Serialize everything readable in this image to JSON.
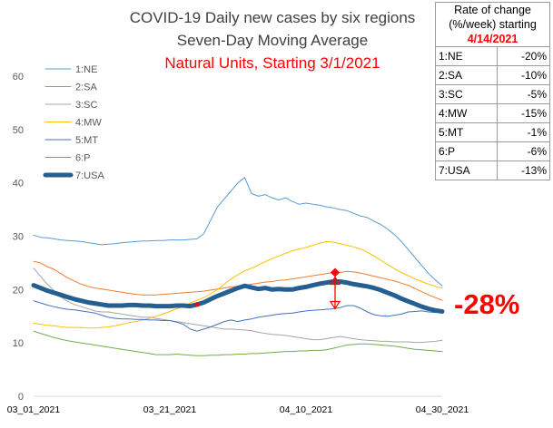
{
  "chart_data": {
    "type": "line",
    "title": "COVID-19 Daily new cases by six regions",
    "subtitle": "Seven-Day Moving Average",
    "subtitle2": "Natural Units, Starting 3/1/2021",
    "ylim": [
      0,
      60
    ],
    "yticks": [
      "0",
      "10",
      "20",
      "30",
      "40",
      "50",
      "60"
    ],
    "xticks": [
      "03_01_2021",
      "03_21_2021",
      "04_10_2021",
      "04_30_2021"
    ],
    "x_start_label": "03_01_2021",
    "n_days": 61,
    "annotation": "-28%",
    "grid": false,
    "legend_position": "top-left",
    "series": [
      {
        "name": "1:NE",
        "color": "#5b9bd5",
        "width": 1,
        "values": [
          30.2,
          29.8,
          29.7,
          29.5,
          29.3,
          29.2,
          29.1,
          29.0,
          28.8,
          28.6,
          28.4,
          28.5,
          28.6,
          28.8,
          28.9,
          29.0,
          29.1,
          29.1,
          29.2,
          29.2,
          29.3,
          29.3,
          29.3,
          29.4,
          29.5,
          30.5,
          33.0,
          35.5,
          37.0,
          38.5,
          40.0,
          41.0,
          38.0,
          37.5,
          37.8,
          37.2,
          36.8,
          37.2,
          36.5,
          36.0,
          36.2,
          36.0,
          35.8,
          35.5,
          35.3,
          35.0,
          34.8,
          34.3,
          33.8,
          33.5,
          32.8,
          32.2,
          31.3,
          30.3,
          29.0,
          27.5,
          26.0,
          24.5,
          23.0,
          21.8,
          20.7
        ]
      },
      {
        "name": "2:SA",
        "color": "#ed7d31",
        "width": 1,
        "values": [
          25.3,
          25.0,
          24.3,
          23.8,
          23.0,
          22.2,
          21.6,
          21.0,
          20.6,
          20.3,
          20.1,
          19.9,
          19.7,
          19.5,
          19.3,
          19.1,
          19.0,
          19.0,
          19.0,
          19.1,
          19.2,
          19.3,
          19.4,
          19.5,
          19.6,
          19.7,
          19.9,
          20.1,
          20.3,
          20.5,
          20.6,
          20.8,
          21.0,
          21.2,
          21.4,
          21.5,
          21.7,
          21.8,
          22.0,
          22.2,
          22.4,
          22.6,
          22.8,
          23.0,
          23.2,
          23.2,
          23.4,
          23.3,
          23.1,
          22.8,
          22.5,
          22.2,
          21.9,
          21.6,
          21.2,
          20.8,
          20.2,
          19.6,
          19.0,
          18.5,
          18.0
        ]
      },
      {
        "name": "3:SC",
        "color": "#a5a5a5",
        "width": 1,
        "values": [
          24.0,
          22.5,
          21.0,
          19.8,
          18.6,
          17.8,
          17.2,
          16.8,
          16.4,
          16.0,
          15.8,
          15.8,
          15.6,
          15.4,
          15.2,
          15.0,
          14.8,
          14.8,
          14.6,
          14.4,
          14.2,
          14.0,
          13.8,
          13.6,
          13.4,
          13.2,
          13.0,
          12.8,
          12.6,
          12.6,
          12.5,
          12.4,
          12.3,
          12.0,
          11.8,
          11.6,
          11.5,
          11.4,
          11.2,
          11.0,
          10.8,
          10.6,
          10.6,
          10.8,
          11.0,
          11.2,
          11.0,
          10.8,
          10.6,
          10.5,
          10.4,
          10.3,
          10.3,
          10.2,
          10.2,
          10.2,
          10.1,
          10.1,
          10.2,
          10.3,
          10.5
        ]
      },
      {
        "name": "4:MW",
        "color": "#ffc000",
        "width": 1,
        "values": [
          13.7,
          13.5,
          13.3,
          13.2,
          13.0,
          12.9,
          12.9,
          12.9,
          12.8,
          12.8,
          12.9,
          13.0,
          13.2,
          13.5,
          13.8,
          14.0,
          14.3,
          14.6,
          15.0,
          15.4,
          15.9,
          16.4,
          16.9,
          17.5,
          18.0,
          18.5,
          19.2,
          20.0,
          21.0,
          22.0,
          22.8,
          23.5,
          24.0,
          24.6,
          25.2,
          25.8,
          26.3,
          26.8,
          27.3,
          27.6,
          27.9,
          28.3,
          28.7,
          29.0,
          28.9,
          28.6,
          28.3,
          28.0,
          27.6,
          27.0,
          26.3,
          25.5,
          24.7,
          23.9,
          23.2,
          22.6,
          22.0,
          21.5,
          21.0,
          20.6,
          20.3
        ]
      },
      {
        "name": "5:MT",
        "color": "#4472c4",
        "width": 1,
        "values": [
          17.9,
          17.5,
          17.1,
          16.8,
          16.5,
          16.3,
          16.2,
          16.0,
          15.8,
          15.6,
          15.2,
          14.8,
          14.6,
          14.5,
          14.5,
          14.4,
          14.4,
          14.3,
          14.3,
          14.2,
          14.2,
          13.9,
          13.5,
          12.6,
          12.2,
          12.6,
          13.0,
          13.5,
          14.0,
          14.3,
          14.0,
          14.3,
          14.5,
          14.8,
          15.0,
          15.2,
          15.4,
          15.5,
          15.6,
          15.8,
          16.0,
          16.1,
          16.2,
          16.3,
          16.4,
          16.6,
          17.0,
          17.0,
          16.5,
          15.8,
          15.3,
          15.1,
          15.0,
          15.2,
          15.4,
          15.8,
          15.9,
          16.0,
          15.8,
          15.7,
          15.8
        ]
      },
      {
        "name": "6:P",
        "color": "#70ad47",
        "width": 1,
        "values": [
          12.2,
          11.8,
          11.4,
          11.0,
          10.7,
          10.4,
          10.2,
          10.0,
          9.8,
          9.6,
          9.4,
          9.2,
          9.0,
          8.8,
          8.6,
          8.4,
          8.2,
          8.0,
          7.8,
          7.8,
          7.8,
          7.9,
          7.8,
          7.7,
          7.6,
          7.6,
          7.7,
          7.7,
          7.8,
          7.8,
          7.9,
          7.9,
          8.0,
          8.0,
          8.1,
          8.2,
          8.3,
          8.4,
          8.4,
          8.5,
          8.5,
          8.6,
          8.6,
          8.7,
          9.0,
          9.3,
          9.6,
          9.7,
          9.8,
          9.8,
          9.7,
          9.6,
          9.5,
          9.4,
          9.2,
          9.0,
          8.8,
          8.7,
          8.6,
          8.5,
          8.4
        ]
      },
      {
        "name": "7:USA",
        "color": "#255e91",
        "width": 5,
        "values": [
          20.8,
          20.3,
          19.8,
          19.4,
          19.0,
          18.6,
          18.2,
          17.9,
          17.6,
          17.4,
          17.2,
          17.0,
          17.0,
          17.0,
          17.1,
          17.1,
          17.0,
          17.0,
          16.9,
          16.9,
          16.9,
          17.0,
          17.0,
          16.9,
          17.2,
          17.6,
          18.2,
          18.8,
          19.3,
          19.8,
          20.3,
          20.7,
          20.4,
          20.1,
          20.3,
          20.0,
          20.1,
          20.0,
          20.0,
          20.3,
          20.5,
          20.8,
          21.1,
          21.3,
          21.5,
          21.5,
          21.3,
          21.0,
          20.8,
          20.6,
          20.3,
          19.9,
          19.4,
          18.9,
          18.3,
          17.8,
          17.3,
          16.8,
          16.4,
          16.1,
          15.9
        ]
      }
    ],
    "rate_table": {
      "header_lines": [
        "Rate of change",
        "(%/week) starting"
      ],
      "header_date": "4/14/2021",
      "rows": [
        {
          "region": "1:NE",
          "rate": "-20%"
        },
        {
          "region": "2:SA",
          "rate": "-10%"
        },
        {
          "region": "3:SC",
          "rate": "-5%"
        },
        {
          "region": "4:MW",
          "rate": "-15%"
        },
        {
          "region": "5:MT",
          "rate": "-1%"
        },
        {
          "region": "6:P",
          "rate": "-6%"
        },
        {
          "region": "7:USA",
          "rate": "-13%"
        }
      ]
    },
    "colors": {
      "title": "#404040",
      "subtitle2": "#ff0000",
      "annotation": "#ff0000",
      "marker": "#ff0000",
      "axis_text": "#595959"
    }
  }
}
